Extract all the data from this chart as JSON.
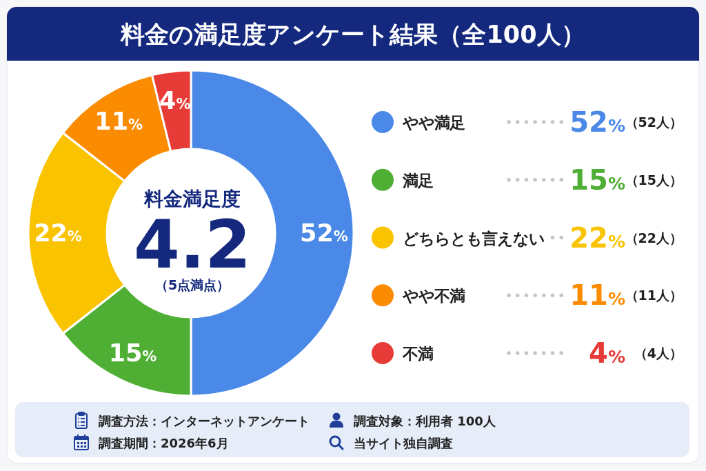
{
  "chart_data": {
    "type": "donut",
    "title": "料金の満足度アンケート結果（全100人）",
    "categories": [
      "やや満足",
      "満足",
      "どちらとも言えない",
      "やや不満",
      "不満"
    ],
    "values": [
      52,
      15,
      22,
      11,
      4
    ],
    "colors": [
      "#4a89e8",
      "#4fae34",
      "#f9c300",
      "#fb8b00",
      "#e63b36"
    ],
    "value_labels": [
      "52%",
      "15%",
      "22%",
      "11%",
      "4%"
    ],
    "legend": "right",
    "annotations": [
      "（52人）",
      "（15人）",
      "（22人）",
      "（11人）",
      "（4人）",
      "料金満足度",
      "4.2",
      "（5点満点）",
      "調査方法：インターネットアンケート",
      "調査対象：利用者 100人",
      "調査期間：2026年6月",
      "当サイト独自調査"
    ]
  }
}
